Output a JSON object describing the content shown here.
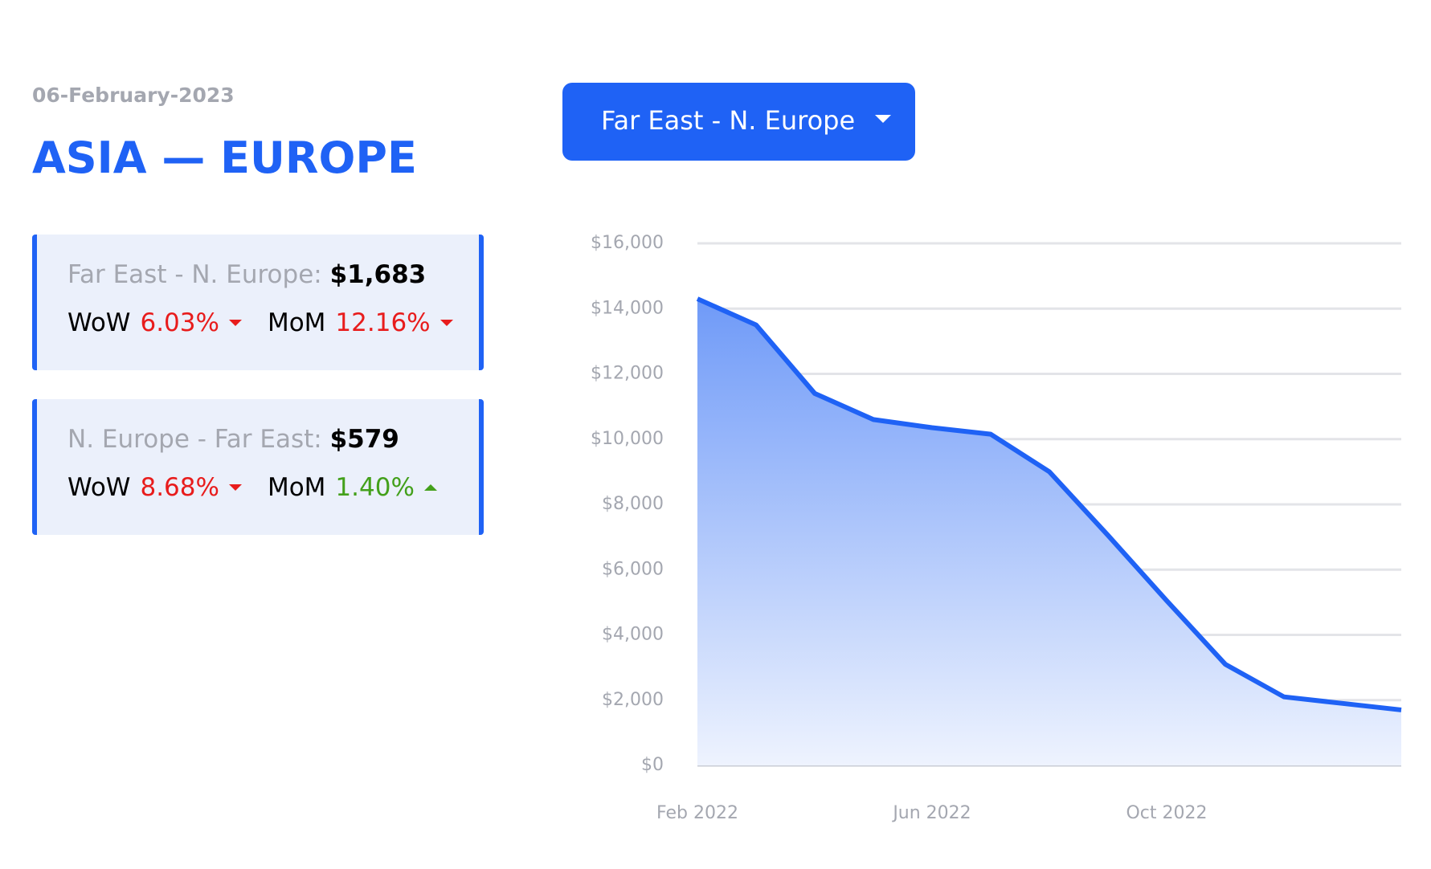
{
  "header": {
    "date": "06-February-2023",
    "title": "ASIA — EUROPE"
  },
  "dropdown": {
    "label": "Far East - N. Europe"
  },
  "cards": [
    {
      "route": "Far East - N. Europe:",
      "price": "$1,683",
      "wow_label": "WoW",
      "wow": "6.03%",
      "mom_label": "MoM",
      "mom": "12.16%"
    },
    {
      "route": "N. Europe - Far East:",
      "price": "$579",
      "wow_label": "WoW",
      "wow": "8.68%",
      "mom_label": "MoM",
      "mom": "1.40%"
    }
  ],
  "chart_data": {
    "type": "area",
    "x": [
      "2022-02",
      "2022-03",
      "2022-04",
      "2022-05",
      "2022-06",
      "2022-07",
      "2022-08",
      "2022-09",
      "2022-10",
      "2022-11",
      "2022-12",
      "2023-01",
      "2023-02"
    ],
    "values": [
      14300,
      13500,
      11400,
      10600,
      10350,
      10150,
      9000,
      7050,
      5050,
      3100,
      2100,
      1900,
      1700
    ],
    "color": "#1f62f5",
    "xlim": [
      "2022-02",
      "2023-02"
    ],
    "xticks": [
      {
        "value": "2022-02",
        "label": "Feb 2022"
      },
      {
        "value": "2022-06",
        "label": "Jun 2022"
      },
      {
        "value": "2022-10",
        "label": "Oct 2022"
      }
    ],
    "ylim": [
      0,
      16000
    ],
    "yticks": [
      {
        "value": 0,
        "label": "$0"
      },
      {
        "value": 2000,
        "label": "$2,000"
      },
      {
        "value": 4000,
        "label": "$4,000"
      },
      {
        "value": 6000,
        "label": "$6,000"
      },
      {
        "value": 8000,
        "label": "$8,000"
      },
      {
        "value": 10000,
        "label": "$10,000"
      },
      {
        "value": 12000,
        "label": "$12,000"
      },
      {
        "value": 14000,
        "label": "$14,000"
      },
      {
        "value": 16000,
        "label": "$16,000"
      }
    ],
    "grid": true
  }
}
